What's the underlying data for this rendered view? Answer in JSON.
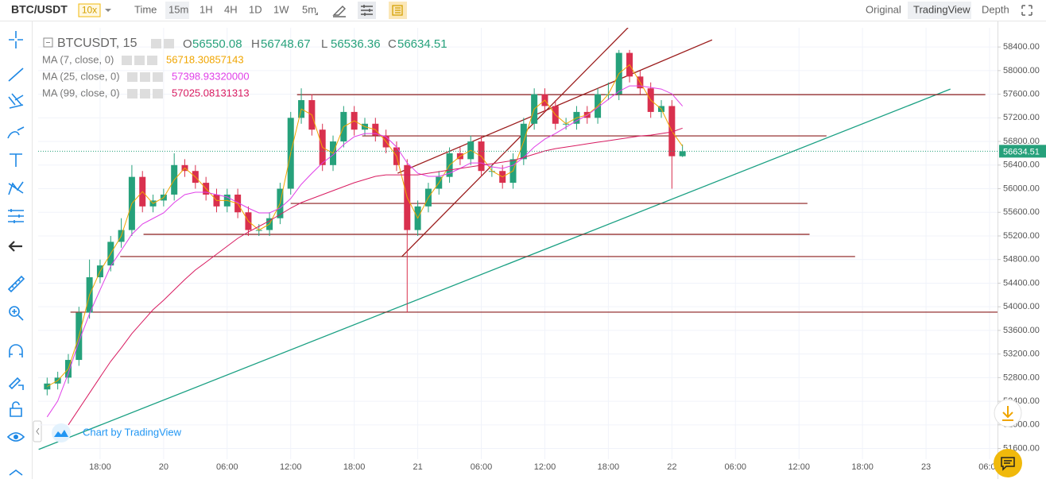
{
  "ui": {
    "symbol": "BTC/USDT",
    "leverage": "10x",
    "intervals": [
      "Time",
      "15m",
      "1H",
      "4H",
      "1D",
      "1W",
      "5m"
    ],
    "views": [
      "Original",
      "TradingView",
      "Depth"
    ],
    "watermark": "Chart by TradingView"
  },
  "chart_data": {
    "type": "candlestick",
    "symbol_label": "BTCUSDT, 15",
    "ohlc_prefixes": [
      "O",
      "H",
      "L",
      "C"
    ],
    "up_color": "#26a17b",
    "down_color": "#d9304e",
    "x": [
      -11,
      -10,
      -9,
      -8,
      -7,
      -6,
      -5,
      -4,
      -3,
      -2,
      -1,
      0,
      1,
      2,
      3,
      4,
      5,
      6,
      7,
      8,
      9,
      10,
      11,
      12,
      13,
      14,
      15,
      16,
      17,
      18,
      19,
      20,
      21,
      22,
      23,
      24,
      25,
      26,
      27,
      28,
      29,
      30,
      31,
      32,
      33,
      34,
      35,
      36,
      37,
      38,
      39,
      40,
      41,
      42,
      43,
      44,
      45,
      46,
      47,
      48,
      49
    ],
    "open": [
      52600,
      52700,
      52800,
      53100,
      53900,
      54500,
      54700,
      55100,
      55300,
      56200,
      55700,
      55800,
      55900,
      56400,
      56300,
      56100,
      55900,
      55700,
      55900,
      55600,
      55300,
      55300,
      55500,
      56000,
      57200,
      57500,
      57000,
      56400,
      56800,
      57300,
      57000,
      57100,
      56900,
      56700,
      56400,
      55300,
      55700,
      56000,
      56200,
      56600,
      56500,
      56800,
      56300,
      56300,
      56100,
      56500,
      57100,
      57600,
      57400,
      57100,
      57100,
      57300,
      57200,
      57600,
      57600,
      58300,
      57900,
      57700,
      57300,
      57400,
      56550.08
    ],
    "high": [
      52800,
      52900,
      53200,
      54000,
      54800,
      54800,
      55200,
      55500,
      56400,
      56300,
      55900,
      56000,
      56600,
      56500,
      56400,
      56200,
      56000,
      56000,
      56000,
      55700,
      55400,
      55600,
      56100,
      57300,
      57700,
      57600,
      57100,
      56900,
      57400,
      57400,
      57200,
      57200,
      57000,
      56800,
      56500,
      55800,
      56100,
      56300,
      56700,
      56700,
      56900,
      56900,
      56400,
      56400,
      56600,
      57200,
      57700,
      57700,
      57500,
      57200,
      57400,
      57400,
      57700,
      57800,
      58350,
      58350,
      58000,
      57800,
      57500,
      57500,
      56748.67
    ],
    "low": [
      52500,
      52600,
      52700,
      53000,
      53800,
      54400,
      54600,
      55000,
      55200,
      55600,
      55600,
      55700,
      55800,
      56200,
      56000,
      55800,
      55600,
      55600,
      55500,
      55200,
      55200,
      55200,
      55400,
      55900,
      57100,
      56900,
      56300,
      56300,
      56700,
      56900,
      56900,
      56800,
      56600,
      56300,
      53900,
      55200,
      55600,
      55900,
      56100,
      56400,
      56400,
      56200,
      56200,
      56000,
      56000,
      56400,
      57000,
      57300,
      57000,
      57000,
      57000,
      57100,
      57100,
      57500,
      57500,
      57800,
      57600,
      57200,
      57200,
      56000,
      56536.36
    ],
    "close": [
      52700,
      52800,
      53100,
      53900,
      54500,
      54700,
      55100,
      55300,
      56200,
      55700,
      55800,
      55900,
      56400,
      56300,
      56100,
      55900,
      55700,
      55900,
      55600,
      55300,
      55300,
      55500,
      56000,
      57200,
      57500,
      57000,
      56400,
      56800,
      57300,
      57000,
      57100,
      56900,
      56700,
      56400,
      55300,
      55700,
      56000,
      56200,
      56600,
      56500,
      56800,
      56300,
      56300,
      56100,
      56500,
      57100,
      57600,
      57400,
      57100,
      57100,
      57300,
      57200,
      57600,
      57600,
      58300,
      57900,
      57700,
      57300,
      57400,
      56550.08,
      56634.51
    ],
    "series": [
      {
        "name": "MA (7, close, 0)",
        "color": "#f0a500",
        "value_label": "56718.30857143",
        "values": [
          52650,
          52750,
          52950,
          53500,
          54200,
          54600,
          54900,
          55200,
          55750,
          55950,
          55750,
          55850,
          56150,
          56350,
          56200,
          56000,
          55800,
          55800,
          55750,
          55450,
          55300,
          55400,
          55750,
          56600,
          57350,
          57250,
          56700,
          56600,
          57050,
          57150,
          57050,
          57000,
          56800,
          56550,
          55850,
          55500,
          55850,
          56100,
          56400,
          56550,
          56650,
          56550,
          56300,
          56200,
          56300,
          56800,
          57350,
          57500,
          57250,
          57100,
          57200,
          57250,
          57400,
          57600,
          57950,
          58100,
          57800,
          57500,
          57350,
          56975,
          56718.30857143
        ]
      },
      {
        "name": "MA (25, close, 0)",
        "color": "#e040e8",
        "value_label": "57398.93320000",
        "values": [
          52135,
          52404,
          52874,
          53412,
          53882,
          54286,
          54689,
          54958,
          55227,
          55402,
          55496,
          55590,
          55765,
          55899,
          55940,
          55940,
          55899,
          55859,
          55765,
          55671,
          55590,
          55590,
          55671,
          55832,
          56074,
          56262,
          56437,
          56572,
          56746,
          56881,
          56934,
          56934,
          56881,
          56706,
          56437,
          56262,
          56209,
          56209,
          56262,
          56343,
          56437,
          56437,
          56370,
          56343,
          56397,
          56531,
          56706,
          56840,
          56934,
          57042,
          57150,
          57244,
          57378,
          57513,
          57647,
          57741,
          57741,
          57714,
          57687,
          57607,
          57398.9332
        ]
      },
      {
        "name": "MA (99, close, 0)",
        "color": "#d81b60",
        "value_label": "57025.08131313",
        "values": [
          null,
          null,
          52000,
          52269,
          52538,
          52807,
          53076,
          53304,
          53546,
          53748,
          53950,
          54111,
          54286,
          54461,
          54622,
          54756,
          54891,
          55025,
          55160,
          55267,
          55361,
          55455,
          55563,
          55671,
          55765,
          55832,
          55899,
          55967,
          56034,
          56101,
          56155,
          56209,
          56235,
          56235,
          56235,
          56235,
          56262,
          56289,
          56316,
          56343,
          56370,
          56397,
          56423,
          56450,
          56477,
          56531,
          56585,
          56639,
          56679,
          56706,
          56733,
          56760,
          56787,
          56813,
          56840,
          56867,
          56894,
          56907,
          56934,
          56961,
          57025.08131313
        ]
      }
    ],
    "hlines": [
      {
        "value": 57593,
        "x": [
          12.6,
          77.6
        ]
      },
      {
        "value": 56894,
        "x": [
          18.75,
          62.6
        ]
      },
      {
        "value": 55751,
        "x": [
          12,
          60.8
        ]
      },
      {
        "value": 55227,
        "x": [
          -1.9,
          61
        ]
      },
      {
        "value": 54851,
        "x": [
          -4.1,
          65.3
        ]
      },
      {
        "value": 53909,
        "x": [
          -8.8,
          79
        ]
      }
    ],
    "hline_color": "#8b1c1c",
    "trendlines": [
      {
        "color": "#9b1c1c",
        "x": [
          22.5,
          43.9
        ],
        "y": [
          54851,
          58736
        ]
      },
      {
        "color": "#9b1c1c",
        "x": [
          22.1,
          51.8
        ],
        "y": [
          56262,
          58521
        ]
      },
      {
        "color": "#1aa083",
        "x": [
          -11.8,
          74.3
        ],
        "y": [
          51584,
          57687
        ]
      }
    ],
    "last_price_color": "#26a17b",
    "xlim": [
      -11.85,
      78.75
    ],
    "xticks": [
      {
        "value": -6,
        "label": "18:00"
      },
      {
        "value": 0,
        "label": "20"
      },
      {
        "value": 6,
        "label": "06:00"
      },
      {
        "value": 12,
        "label": "12:00"
      },
      {
        "value": 18,
        "label": "18:00"
      },
      {
        "value": 24,
        "label": "21"
      },
      {
        "value": 30,
        "label": "06:00"
      },
      {
        "value": 36,
        "label": "12:00"
      },
      {
        "value": 42,
        "label": "18:00"
      },
      {
        "value": 48,
        "label": "22"
      },
      {
        "value": 54,
        "label": "06:00"
      },
      {
        "value": 60,
        "label": "12:00"
      },
      {
        "value": 66,
        "label": "18:00"
      },
      {
        "value": 72,
        "label": "23"
      },
      {
        "value": 78,
        "label": "06:00"
      }
    ],
    "ylim": [
      51150,
      58725
    ],
    "yticks": [
      {
        "value": 51600,
        "label": "51600.00"
      },
      {
        "value": 52000,
        "label": "52000.00"
      },
      {
        "value": 52400,
        "label": "52400.00"
      },
      {
        "value": 52800,
        "label": "52800.00"
      },
      {
        "value": 53200,
        "label": "53200.00"
      },
      {
        "value": 53600,
        "label": "53600.00"
      },
      {
        "value": 54000,
        "label": "54000.00"
      },
      {
        "value": 54400,
        "label": "54400.00"
      },
      {
        "value": 54800,
        "label": "54800.00"
      },
      {
        "value": 55200,
        "label": "55200.00"
      },
      {
        "value": 55600,
        "label": "55600.00"
      },
      {
        "value": 56000,
        "label": "56000.00"
      },
      {
        "value": 56400,
        "label": "56400.00"
      },
      {
        "value": 56800,
        "label": "56800.00"
      },
      {
        "value": 57200,
        "label": "57200.00"
      },
      {
        "value": 57600,
        "label": "57600.00"
      },
      {
        "value": 58000,
        "label": "58000.00"
      },
      {
        "value": 58400,
        "label": "58400.00"
      }
    ],
    "grid": true
  }
}
